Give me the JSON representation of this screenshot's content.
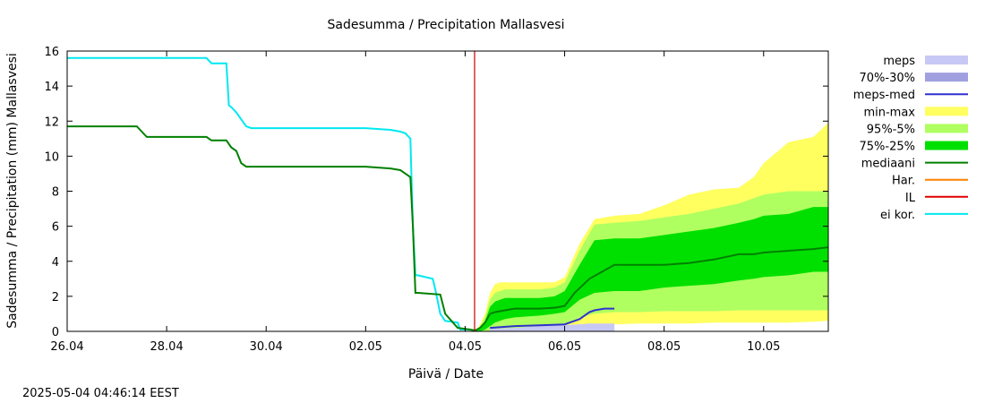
{
  "chart_data": {
    "type": "area",
    "title": "Sadesumma / Precipitation  Mallasvesi",
    "xlabel": "Päivä / Date",
    "ylabel": "Sadesumma / Precipitation (mm)  Mallasvesi",
    "timestamp": "2025-05-04 04:46:14 EEST",
    "xlim": [
      0,
      15.3
    ],
    "ylim": [
      0,
      16
    ],
    "x_unit": "days since 26.04",
    "xticks": [
      {
        "x": 0,
        "label": "26.04"
      },
      {
        "x": 2,
        "label": "28.04"
      },
      {
        "x": 4,
        "label": "30.04"
      },
      {
        "x": 6,
        "label": "02.05"
      },
      {
        "x": 8,
        "label": "04.05"
      },
      {
        "x": 10,
        "label": "06.05"
      },
      {
        "x": 12,
        "label": "08.05"
      },
      {
        "x": 14,
        "label": "10.05"
      }
    ],
    "yticks": [
      0,
      2,
      4,
      6,
      8,
      10,
      12,
      14,
      16
    ],
    "vline_x": 8.19,
    "legend": [
      {
        "label": "meps",
        "kind": "box",
        "color": "#c8c8f5"
      },
      {
        "label": "70%-30%",
        "kind": "box",
        "color": "#a0a0e0"
      },
      {
        "label": "meps-med",
        "kind": "line",
        "color": "#3030d0"
      },
      {
        "label": "min-max",
        "kind": "box",
        "color": "#ffff60"
      },
      {
        "label": "95%-5%",
        "kind": "box",
        "color": "#b0ff60"
      },
      {
        "label": "75%-25%",
        "kind": "box",
        "color": "#00e000"
      },
      {
        "label": "mediaani",
        "kind": "line",
        "color": "#008000"
      },
      {
        "label": "Har.",
        "kind": "line",
        "color": "#ff8000"
      },
      {
        "label": "IL",
        "kind": "line",
        "color": "#e00000"
      },
      {
        "label": "ei kor.",
        "kind": "line",
        "color": "#00e8f0"
      }
    ],
    "bands": [
      {
        "name": "min-max",
        "color": "#ffff60",
        "x": [
          8.2,
          8.3,
          8.4,
          8.5,
          8.6,
          8.7,
          8.8,
          9.0,
          9.5,
          9.8,
          10.0,
          10.3,
          10.6,
          11.0,
          11.5,
          12.0,
          12.5,
          13.0,
          13.5,
          13.8,
          14.0,
          14.5,
          15.0,
          15.3
        ],
        "upper": [
          0,
          0.4,
          1.0,
          2.2,
          2.7,
          2.8,
          2.8,
          2.8,
          2.8,
          2.8,
          3.1,
          5.0,
          6.4,
          6.6,
          6.7,
          7.2,
          7.8,
          8.1,
          8.2,
          8.8,
          9.6,
          10.8,
          11.1,
          11.9
        ],
        "lower": [
          0,
          0,
          0,
          0,
          0,
          0,
          0,
          0,
          0,
          0,
          0.1,
          0.3,
          0.4,
          0.4,
          0.45,
          0.45,
          0.45,
          0.5,
          0.5,
          0.5,
          0.5,
          0.5,
          0.55,
          0.6
        ]
      },
      {
        "name": "95%-5%",
        "color": "#b0ff60",
        "x": [
          8.2,
          8.3,
          8.4,
          8.5,
          8.6,
          8.7,
          8.8,
          9.0,
          9.5,
          9.8,
          10.0,
          10.3,
          10.6,
          11.0,
          11.5,
          12.0,
          12.5,
          13.0,
          13.5,
          13.8,
          14.0,
          14.5,
          15.0,
          15.3
        ],
        "upper": [
          0,
          0.3,
          0.8,
          1.8,
          2.2,
          2.3,
          2.4,
          2.4,
          2.4,
          2.5,
          2.8,
          4.6,
          6.1,
          6.2,
          6.3,
          6.5,
          6.7,
          7.0,
          7.3,
          7.6,
          7.8,
          8.0,
          8.0,
          8.0
        ],
        "lower": [
          0,
          0,
          0,
          0,
          0,
          0,
          0,
          0.05,
          0.1,
          0.15,
          0.3,
          0.8,
          1.0,
          1.1,
          1.1,
          1.15,
          1.15,
          1.15,
          1.2,
          1.2,
          1.2,
          1.2,
          1.2,
          1.2
        ]
      },
      {
        "name": "75%-25%",
        "color": "#00e000",
        "x": [
          8.2,
          8.3,
          8.4,
          8.5,
          8.6,
          8.7,
          8.8,
          9.0,
          9.5,
          9.8,
          10.0,
          10.3,
          10.6,
          11.0,
          11.5,
          12.0,
          12.5,
          13.0,
          13.5,
          13.8,
          14.0,
          14.5,
          15.0,
          15.3
        ],
        "upper": [
          0,
          0.2,
          0.6,
          1.4,
          1.7,
          1.8,
          1.9,
          1.9,
          1.9,
          2.0,
          2.3,
          3.8,
          5.2,
          5.3,
          5.3,
          5.5,
          5.7,
          5.9,
          6.2,
          6.4,
          6.6,
          6.7,
          7.1,
          7.1
        ],
        "lower": [
          0,
          0,
          0.1,
          0.3,
          0.5,
          0.6,
          0.7,
          0.8,
          0.9,
          1.0,
          1.1,
          1.8,
          2.2,
          2.3,
          2.3,
          2.5,
          2.6,
          2.7,
          2.9,
          3.0,
          3.1,
          3.2,
          3.4,
          3.4
        ]
      },
      {
        "name": "meps",
        "color": "#c8c8f5",
        "x": [
          8.5,
          9.0,
          9.5,
          10.0,
          10.5,
          11.0
        ],
        "upper": [
          0.15,
          0.2,
          0.3,
          0.35,
          0.45,
          0.45
        ],
        "lower": [
          0,
          0,
          0,
          0,
          0,
          0
        ]
      }
    ],
    "series": [
      {
        "name": "ei kor.",
        "color": "#00e8f0",
        "x": [
          0,
          2.8,
          2.9,
          3.2,
          3.25,
          3.3,
          3.4,
          3.5,
          3.6,
          3.7,
          3.8,
          6.0,
          6.5,
          6.7,
          6.8,
          6.9,
          6.95,
          7.0,
          7.05,
          7.2,
          7.35,
          7.4,
          7.5,
          7.6,
          7.85,
          7.9,
          8.1
        ],
        "y": [
          15.6,
          15.6,
          15.3,
          15.3,
          12.9,
          12.8,
          12.5,
          12.1,
          11.7,
          11.6,
          11.6,
          11.6,
          11.5,
          11.4,
          11.3,
          11.0,
          6.0,
          3.2,
          3.2,
          3.1,
          3.0,
          2.4,
          1.0,
          0.6,
          0.5,
          0.1,
          0.1
        ]
      },
      {
        "name": "mediaani",
        "color": "#008000",
        "x": [
          0,
          1.4,
          1.6,
          2.8,
          2.9,
          3.2,
          3.3,
          3.4,
          3.5,
          3.6,
          6.0,
          6.5,
          6.7,
          6.8,
          6.9,
          6.95,
          7.0,
          7.05,
          7.5,
          7.6,
          7.85,
          8.1,
          8.2,
          8.3,
          8.4,
          8.5,
          8.6,
          8.8,
          9.0,
          9.5,
          9.8,
          10.0,
          10.2,
          10.5,
          11.0,
          11.5,
          12.0,
          12.5,
          13.0,
          13.5,
          13.8,
          14.0,
          14.5,
          15.0,
          15.3
        ],
        "y": [
          11.7,
          11.7,
          11.1,
          11.1,
          10.9,
          10.9,
          10.5,
          10.3,
          9.6,
          9.4,
          9.4,
          9.3,
          9.2,
          9.0,
          8.8,
          6.0,
          2.2,
          2.2,
          2.1,
          1.0,
          0.2,
          0.1,
          0.05,
          0.2,
          0.5,
          1.0,
          1.1,
          1.2,
          1.3,
          1.3,
          1.35,
          1.45,
          2.2,
          3.0,
          3.8,
          3.8,
          3.8,
          3.9,
          4.1,
          4.4,
          4.4,
          4.5,
          4.6,
          4.7,
          4.8
        ]
      },
      {
        "name": "meps-med",
        "color": "#3030d0",
        "x": [
          8.5,
          9.0,
          9.5,
          10.0,
          10.3,
          10.4,
          10.5,
          10.6,
          10.8,
          11.0
        ],
        "y": [
          0.2,
          0.3,
          0.35,
          0.4,
          0.7,
          0.9,
          1.1,
          1.2,
          1.3,
          1.3
        ]
      }
    ]
  }
}
